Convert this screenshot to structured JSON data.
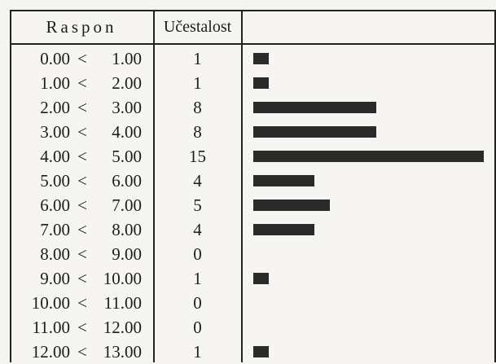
{
  "header": {
    "range": "Raspon",
    "frequency": "Učestalost"
  },
  "colors": {
    "bar": "#2a2a2a",
    "background": "#f6f5f2"
  },
  "chart_data": {
    "type": "bar",
    "orientation": "horizontal",
    "categories": [
      "0.00 < 1.00",
      "1.00 < 2.00",
      "2.00 < 3.00",
      "3.00 < 4.00",
      "4.00 < 5.00",
      "5.00 < 6.00",
      "6.00 < 7.00",
      "7.00 < 8.00",
      "8.00 < 9.00",
      "9.00 < 10.00",
      "10.00 < 11.00",
      "11.00 < 12.00",
      "12.00 < 13.00"
    ],
    "ranges": [
      {
        "lo": "0.00",
        "op": "<",
        "hi": "1.00"
      },
      {
        "lo": "1.00",
        "op": "<",
        "hi": "2.00"
      },
      {
        "lo": "2.00",
        "op": "<",
        "hi": "3.00"
      },
      {
        "lo": "3.00",
        "op": "<",
        "hi": "4.00"
      },
      {
        "lo": "4.00",
        "op": "<",
        "hi": "5.00"
      },
      {
        "lo": "5.00",
        "op": "<",
        "hi": "6.00"
      },
      {
        "lo": "6.00",
        "op": "<",
        "hi": "7.00"
      },
      {
        "lo": "7.00",
        "op": "<",
        "hi": "8.00"
      },
      {
        "lo": "8.00",
        "op": "<",
        "hi": "9.00"
      },
      {
        "lo": "9.00",
        "op": "<",
        "hi": "10.00"
      },
      {
        "lo": "10.00",
        "op": "<",
        "hi": "11.00"
      },
      {
        "lo": "11.00",
        "op": "<",
        "hi": "12.00"
      },
      {
        "lo": "12.00",
        "op": "<",
        "hi": "13.00"
      }
    ],
    "values": [
      1,
      1,
      8,
      8,
      15,
      4,
      5,
      4,
      0,
      1,
      0,
      0,
      1
    ],
    "max": 15,
    "grid": false,
    "legend": "none"
  }
}
